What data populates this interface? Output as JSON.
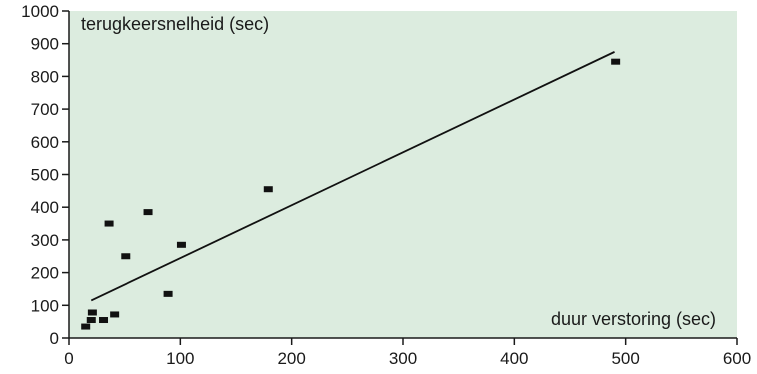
{
  "chart_data": {
    "type": "scatter",
    "title": "",
    "xlabel": "duur verstoring (sec)",
    "ylabel": "terugkeersnelheid (sec)",
    "xlim": [
      0,
      600
    ],
    "ylim": [
      0,
      1000
    ],
    "xticks": [
      "0",
      "100",
      "200",
      "300",
      "400",
      "500",
      "600"
    ],
    "yticks": [
      "0",
      "100",
      "200",
      "300",
      "400",
      "500",
      "600",
      "700",
      "800",
      "900",
      "1000"
    ],
    "grid": false,
    "legend": "none",
    "colors": {
      "background": "#dcecdf",
      "marker": "#111111",
      "line": "#111111"
    },
    "points": [
      {
        "x": 15,
        "y": 35
      },
      {
        "x": 20,
        "y": 55
      },
      {
        "x": 21,
        "y": 78
      },
      {
        "x": 31,
        "y": 55
      },
      {
        "x": 36,
        "y": 350
      },
      {
        "x": 41,
        "y": 72
      },
      {
        "x": 51,
        "y": 250
      },
      {
        "x": 71,
        "y": 385
      },
      {
        "x": 89,
        "y": 135
      },
      {
        "x": 101,
        "y": 285
      },
      {
        "x": 179,
        "y": 455
      },
      {
        "x": 491,
        "y": 845
      }
    ],
    "trendline": {
      "x": [
        20,
        490
      ],
      "y": [
        115,
        875
      ]
    }
  }
}
